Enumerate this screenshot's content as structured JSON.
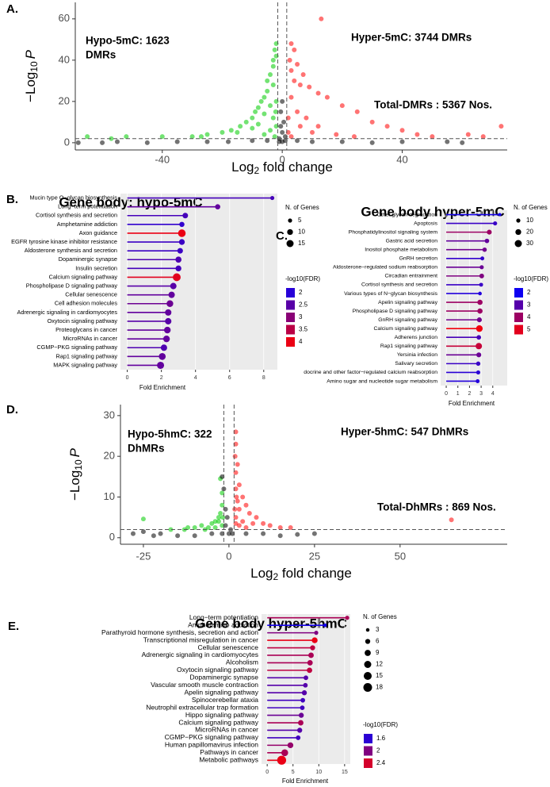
{
  "chart_data": [
    {
      "type": "scatter",
      "panel": "A.",
      "y_label": {
        "text": "−Log",
        "sub": "10",
        "var": "P"
      },
      "x_label": {
        "text": "Log",
        "sub": "2",
        "rest": " fold change"
      },
      "annotations": [
        [
          "Hypo-5mC: 1623",
          "DMRs"
        ],
        [
          "Hyper-5mC: 3744 DMRs"
        ],
        [
          "Total-DMRs : 5367 Nos."
        ]
      ],
      "xlim": [
        -69,
        75
      ],
      "ylim": [
        -3.5,
        68
      ],
      "xticks": [
        -40,
        0,
        40
      ],
      "yticks": [
        0,
        20,
        40,
        60
      ],
      "vlines": [
        -1.5,
        1.5
      ],
      "hline": 2,
      "series": [
        {
          "color": "#00cc00",
          "x": [
            -65,
            -57,
            -52,
            -40,
            -30,
            -27,
            -25,
            -20,
            -17,
            -14,
            -12,
            -10,
            -9,
            -8,
            -7,
            -6,
            -5,
            -5,
            -4,
            -3,
            -3,
            -2.5,
            -2,
            -2,
            -3,
            -4,
            -6,
            -8,
            -10,
            -15,
            -3,
            -2,
            -4,
            -6,
            -2.5,
            -2,
            -2.2
          ],
          "values": [
            3,
            2,
            3,
            3,
            3,
            3,
            4,
            5,
            6,
            8,
            10,
            12,
            15,
            17,
            20,
            22,
            25,
            30,
            33,
            37,
            40,
            45,
            48,
            42,
            28,
            18,
            14,
            9,
            7,
            5,
            12,
            8,
            6,
            4,
            3,
            20,
            15
          ]
        },
        {
          "color": "#ff0000",
          "x": [
            13,
            3,
            4,
            2.5,
            5,
            3,
            7,
            4,
            6,
            9,
            12,
            15,
            3,
            20,
            25,
            5,
            8,
            30,
            35,
            40,
            45,
            50,
            62,
            67,
            73,
            2,
            3,
            10,
            18,
            24,
            6,
            12,
            2
          ],
          "values": [
            60,
            48,
            45,
            40,
            38,
            35,
            33,
            30,
            28,
            27,
            24,
            22,
            22,
            18,
            15,
            15,
            12,
            10,
            8,
            6,
            4,
            3,
            4,
            3,
            8,
            5,
            3,
            5,
            4,
            3,
            8,
            8,
            12
          ]
        },
        {
          "color": "#000000",
          "x": [
            -68,
            -60,
            -55,
            -45,
            -35,
            -25,
            -18,
            -10,
            -5,
            -1,
            0,
            0.5,
            -0.5,
            0,
            1,
            5,
            10,
            20,
            30,
            40,
            55,
            60,
            0,
            -1,
            1,
            -0.5
          ],
          "values": [
            0,
            0,
            0.5,
            0,
            0.5,
            0.5,
            0.5,
            1,
            1,
            2,
            5,
            10,
            15,
            20,
            1,
            1,
            0.5,
            0.5,
            0,
            0.5,
            0.5,
            0,
            0.5,
            0.5,
            3,
            8
          ]
        }
      ]
    },
    {
      "type": "lollipop",
      "panel": "B.",
      "title": "Gene body: hypo-5mC",
      "x_label": "Fold Enrichment",
      "categories": [
        "Mucin type O−glycan biosynthesis",
        "Long−term potentiation",
        "Cortisol synthesis and secretion",
        "Amphetamine addiction",
        "Axon guidance",
        "EGFR tyrosine kinase inhibitor resistance",
        "Aldosterone synthesis and secretion",
        "Dopaminergic synapse",
        "Insulin secretion",
        "Calcium signaling pathway",
        "Phospholipase D signaling pathway",
        "Cellular senescence",
        "Cell adhesion molecules",
        "Adrenergic signaling in cardiomyocytes",
        "Oxytocin signaling pathway",
        "Proteoglycans in cancer",
        "MicroRNAs in cancer",
        "CGMP−PKG signaling pathway",
        "Rap1 signaling pathway",
        "MAPK signaling pathway"
      ],
      "values": [
        8.5,
        5.3,
        3.4,
        3.2,
        3.2,
        3.2,
        3.1,
        3.0,
        3.0,
        2.9,
        2.7,
        2.6,
        2.5,
        2.4,
        2.4,
        2.35,
        2.3,
        2.15,
        2.05,
        1.95
      ],
      "fdr": [
        2.3,
        2.6,
        2.3,
        2.1,
        4.0,
        2.2,
        2.2,
        2.4,
        2.3,
        3.9,
        2.5,
        2.6,
        2.7,
        2.6,
        2.5,
        2.6,
        2.6,
        2.4,
        2.6,
        2.6
      ],
      "genes": [
        5,
        8,
        9,
        8,
        17,
        10,
        9,
        11,
        10,
        18,
        12,
        12,
        13,
        12,
        12,
        13,
        13,
        12,
        14,
        15
      ],
      "xlim": [
        -0.4,
        8.8
      ],
      "xticks": [
        0,
        2,
        4,
        6,
        8
      ],
      "size_title": "N. of Genes",
      "size_ticks": [
        5,
        10,
        15
      ],
      "color_title": "-log10(FDR)",
      "color_ticks": [
        2.0,
        2.5,
        3.0,
        3.5,
        4.0
      ],
      "color_lim": [
        1.6,
        4.2
      ],
      "color_scale": [
        "#0000ff",
        "#ff0000"
      ]
    },
    {
      "type": "lollipop",
      "panel": "C.",
      "title": "Gene body hyper-5mC",
      "x_label": "Fold Enrichment",
      "categories": [
        "Other glycan degradation",
        "Apoptosis",
        "Phosphatidylinositol signaling system",
        "Gastric acid secretion",
        "Inositol phosphate metabolism",
        "GnRH secretion",
        "Aldosterone−regulated sodium reabsorption",
        "Circadian entrainment",
        "Cortisol synthesis and secretion",
        "Various types of N−glycan biosynthesis",
        "Apelin signaling pathway",
        "Phospholipase D signaling pathway",
        "GnRH signaling pathway",
        "Calcium signaling pathway",
        "Adherens junction",
        "Rap1 signaling pathway",
        "Yersinia infection",
        "Salivary secretion",
        "docrine and other factor−regulated calcium reabsorption",
        "Amino sugar and nucleotide sugar metabolism"
      ],
      "values": [
        4.6,
        4.2,
        3.7,
        3.5,
        3.3,
        3.1,
        3.05,
        3.05,
        3.0,
        2.9,
        2.9,
        2.9,
        2.85,
        2.85,
        2.8,
        2.8,
        2.8,
        2.75,
        2.75,
        2.7
      ],
      "fdr": [
        2.1,
        2.6,
        4.0,
        3.2,
        3.4,
        2.5,
        3.3,
        3.6,
        2.6,
        2.3,
        4.0,
        4.0,
        3.4,
        5.2,
        2.8,
        4.6,
        3.3,
        2.6,
        2.4,
        2.3
      ],
      "genes": [
        6,
        10,
        14,
        12,
        11,
        9,
        10,
        13,
        9,
        8,
        16,
        16,
        14,
        26,
        12,
        24,
        14,
        11,
        10,
        9
      ],
      "xlim": [
        -0.48,
        5.24
      ],
      "xticks": [
        0,
        1,
        2,
        3,
        4
      ],
      "size_title": "N. of Genes",
      "size_ticks": [
        10,
        20,
        30
      ],
      "color_title": "-log10(FDR)",
      "color_ticks": [
        2,
        3,
        4,
        5
      ],
      "color_lim": [
        1.8,
        5.4
      ],
      "color_scale": [
        "#0000ff",
        "#ff0000"
      ]
    },
    {
      "type": "scatter",
      "panel": "D.",
      "y_label": {
        "text": "−Log",
        "sub": "10",
        "var": "P"
      },
      "x_label": {
        "text": "Log",
        "sub": "2",
        "rest": " fold change"
      },
      "annotations": [
        [
          "Hypo-5hmC: 322",
          "DhMRs"
        ],
        [
          "Hyper-5hmC: 547 DhMRs"
        ],
        [
          "Total-DhMRs : 869 Nos."
        ]
      ],
      "xlim": [
        -31.7,
        81.3
      ],
      "ylim": [
        -1.6,
        32.7
      ],
      "xticks": [
        -25,
        0,
        25,
        50
      ],
      "yticks": [
        0,
        10,
        20,
        30
      ],
      "vlines": [
        -1.5,
        1.5
      ],
      "hline": 2,
      "series": [
        {
          "color": "#00cc00",
          "x": [
            -25,
            -17,
            -13,
            -10,
            -8,
            -6,
            -5,
            -4,
            -3,
            -2.5,
            -2,
            -2,
            -2.5,
            -3,
            -2,
            -4,
            -7,
            -12,
            -1.8
          ],
          "values": [
            4.6,
            2,
            2,
            2.5,
            3,
            2.5,
            3.5,
            4,
            5,
            6,
            8,
            11,
            14.5,
            4,
            3,
            2.5,
            2,
            2.5,
            5
          ]
        },
        {
          "color": "#ff0000",
          "x": [
            2,
            2,
            1.8,
            2.5,
            2,
            3,
            2,
            4,
            2.5,
            5,
            3,
            6,
            8,
            2,
            4,
            7,
            10,
            12,
            15,
            18,
            3,
            5,
            2,
            65,
            2.2,
            1.7
          ],
          "values": [
            26,
            23,
            20,
            18,
            16,
            13,
            12,
            10,
            9,
            8,
            7,
            6,
            5,
            5,
            4,
            3.5,
            3.5,
            3,
            2.5,
            2.5,
            3,
            2.5,
            3.5,
            4.4,
            10,
            7
          ]
        },
        {
          "color": "#000000",
          "x": [
            -28,
            -25,
            -22,
            -20,
            -15,
            -10,
            -5,
            -2,
            0,
            -1,
            -2,
            -1.5,
            -1,
            1,
            5,
            10,
            15,
            20,
            25,
            -0.5,
            0.5
          ],
          "values": [
            1,
            1.5,
            0.5,
            1,
            0.5,
            0.5,
            1,
            1,
            1,
            3,
            15,
            12,
            7,
            1,
            1,
            1,
            0.5,
            0.8,
            1,
            5,
            2
          ]
        }
      ]
    },
    {
      "type": "lollipop",
      "panel": "E.",
      "title": "Gene body hyper-5hmC",
      "x_label": "Fold Enrichment",
      "categories": [
        "Long−term potentiation",
        "Amphetamine addiction",
        "Parathyroid hormone synthesis, secretion and action",
        "Transcriptional misregulation in cancer",
        "Cellular senescence",
        "Adrenergic signaling in cardiomyocytes",
        "Alcoholism",
        "Oxytocin signaling pathway",
        "Dopaminergic synapse",
        "Vascular smooth muscle contraction",
        "Apelin signaling pathway",
        "Spinocerebellar ataxia",
        "Neutrophil extracellular trap formation",
        "Hippo signaling pathway",
        "Calcium signaling pathway",
        "MicroRNAs in cancer",
        "CGMP−PKG signaling pathway",
        "Human papillomavirus infection",
        "Pathways in cancer",
        "Metabolic pathways"
      ],
      "values": [
        15.5,
        11.2,
        9.5,
        9.2,
        8.8,
        8.5,
        8.3,
        8.2,
        7.5,
        7.4,
        7.2,
        6.9,
        6.8,
        6.6,
        6.5,
        6.3,
        6.0,
        4.5,
        3.4,
        2.8
      ],
      "fdr": [
        2.2,
        1.5,
        2.0,
        2.5,
        2.3,
        2.2,
        2.2,
        2.3,
        1.8,
        1.8,
        1.8,
        1.7,
        1.7,
        1.9,
        2.2,
        1.8,
        1.7,
        2.1,
        2.2,
        2.5
      ],
      "genes": [
        4,
        3,
        4,
        8,
        6,
        7,
        7,
        7,
        5,
        5,
        6,
        5,
        5,
        6,
        7,
        6,
        5,
        8,
        11,
        19
      ],
      "xlim": [
        -1.1,
        16.1
      ],
      "xticks": [
        0,
        5,
        10,
        15
      ],
      "size_title": "N. of Genes",
      "size_ticks": [
        3,
        6,
        9,
        12,
        15,
        18
      ],
      "color_title": "-log10(FDR)",
      "color_ticks": [
        1.6,
        2.0,
        2.4
      ],
      "color_lim": [
        1.4,
        2.6
      ],
      "color_scale": [
        "#0000ff",
        "#ff0000"
      ]
    }
  ]
}
